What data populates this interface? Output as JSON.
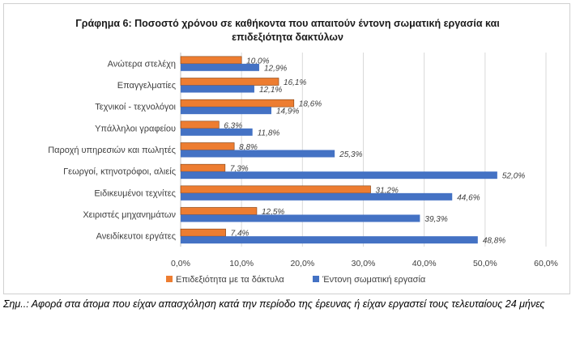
{
  "chart_data": {
    "type": "bar",
    "orientation": "horizontal",
    "title_line1": "Γράφημα 6: Ποσοστό χρόνου σε καθήκοντα που απαιτούν έντονη σωματική εργασία και",
    "title_line2": "επιδεξιότητα δακτύλων",
    "categories": [
      "Ανώτερα στελέχη",
      "Επαγγελματίες",
      "Τεχνικοί - τεχνολόγοι",
      "Υπάλληλοι γραφείου",
      "Παροχή υπηρεσιών και πωλητές",
      "Γεωργοί, κτηνοτρόφοι, αλιείς",
      "Ειδικευμένοι τεχνίτες",
      "Χειριστές μηχανημάτων",
      "Ανειδίκευτοι εργάτες"
    ],
    "series": [
      {
        "name": "Επιδεξιότητα με τα δάκτυλα",
        "color": "#ED7D31",
        "values": [
          10.0,
          16.1,
          18.6,
          6.3,
          8.8,
          7.3,
          31.2,
          12.5,
          7.4
        ],
        "labels": [
          "10,0%",
          "16,1%",
          "18,6%",
          "6,3%",
          "8,8%",
          "7,3%",
          "31,2%",
          "12,5%",
          "7,4%"
        ]
      },
      {
        "name": "Έντονη σωματική εργασία",
        "color": "#4472C4",
        "values": [
          12.9,
          12.1,
          14.9,
          11.8,
          25.3,
          52.0,
          44.6,
          39.3,
          48.8
        ],
        "labels": [
          "12,9%",
          "12,1%",
          "14,9%",
          "11,8%",
          "25,3%",
          "52,0%",
          "44,6%",
          "39,3%",
          "48,8%"
        ]
      }
    ],
    "xlim": [
      0,
      60
    ],
    "xticks": [
      0,
      10,
      20,
      30,
      40,
      50,
      60
    ],
    "xtick_labels": [
      "0,0%",
      "10,0%",
      "20,0%",
      "30,0%",
      "40,0%",
      "50,0%",
      "60,0%"
    ],
    "grid": "vertical",
    "legend_position": "bottom"
  },
  "footnote": "Σημ..: Αφορά στα άτομα που είχαν απασχόληση κατά την περίοδο της έρευνας ή είχαν εργαστεί τους τελευταίους 24 μήνες"
}
